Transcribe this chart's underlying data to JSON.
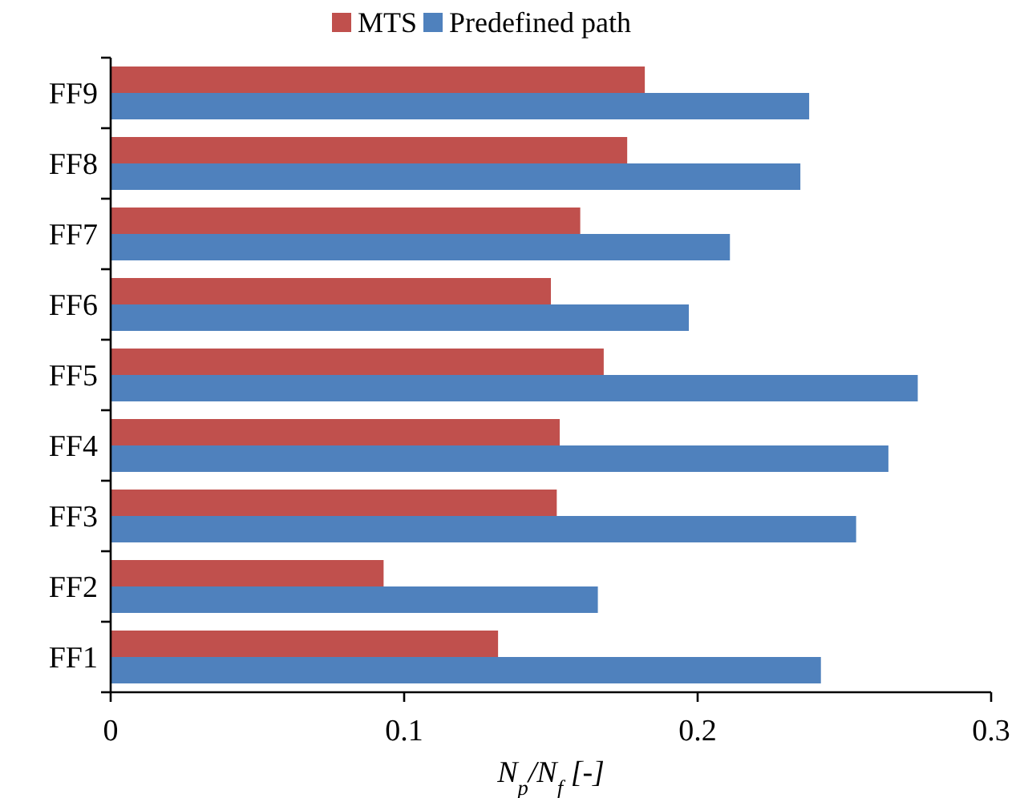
{
  "chart_data": {
    "type": "bar",
    "orientation": "horizontal",
    "xlabel": "N$_{p}$/N$_{f}$ [-]",
    "categories": [
      "FF9",
      "FF8",
      "FF7",
      "FF6",
      "FF5",
      "FF4",
      "FF3",
      "FF2",
      "FF1"
    ],
    "series": [
      {
        "name": "MTS",
        "color": "#c0504d",
        "values": [
          0.182,
          0.176,
          0.16,
          0.15,
          0.168,
          0.153,
          0.152,
          0.093,
          0.132
        ]
      },
      {
        "name": "Predefined path",
        "color": "#4f81bd",
        "values": [
          0.238,
          0.235,
          0.211,
          0.197,
          0.275,
          0.265,
          0.254,
          0.166,
          0.242
        ]
      }
    ],
    "xlim": [
      0,
      0.3
    ],
    "xticks": [
      0,
      0.1,
      0.2,
      0.3
    ],
    "legend": "top"
  }
}
